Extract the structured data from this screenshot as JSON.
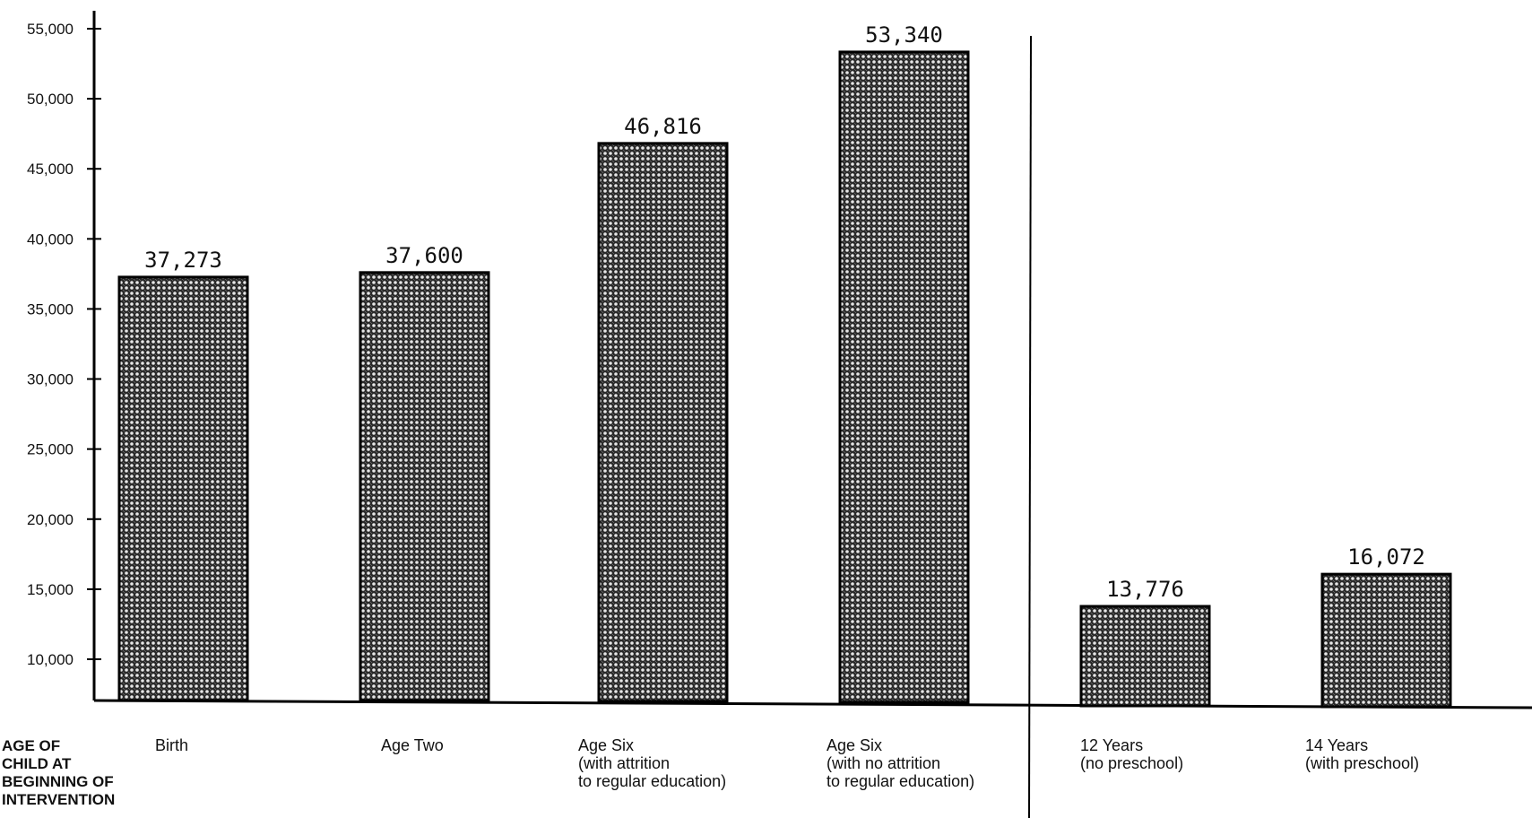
{
  "chart_data": {
    "type": "bar",
    "categories": [
      [
        "Birth"
      ],
      [
        "Age Two"
      ],
      [
        "Age Six",
        "(with attrition",
        "to regular education)"
      ],
      [
        "Age Six",
        "(with no attrition",
        "to regular education)"
      ],
      [
        "12 Years",
        "(no preschool)"
      ],
      [
        "14 Years",
        "(with preschool)"
      ]
    ],
    "values": [
      37273,
      37600,
      46816,
      53340,
      13776,
      16072
    ],
    "value_labels": [
      "37,273",
      "37,600",
      "46,816",
      "53,340",
      "13,776",
      "16,072"
    ],
    "y_ticks": [
      10000,
      15000,
      20000,
      25000,
      30000,
      35000,
      40000,
      45000,
      50000,
      55000
    ],
    "y_tick_labels": [
      "10,000",
      "15,000",
      "20,000",
      "25,000",
      "30,000",
      "35,000",
      "40,000",
      "45,000",
      "50,000",
      "55,000"
    ],
    "xlabel": [
      "AGE OF",
      "CHILD AT",
      "BEGINNING OF",
      "INTERVENTION"
    ],
    "ylabel": "",
    "title": "",
    "bar_pattern": "crosshatch dot screen",
    "divider": "vertical rule between bar 4 and bar 5",
    "grid": false
  }
}
